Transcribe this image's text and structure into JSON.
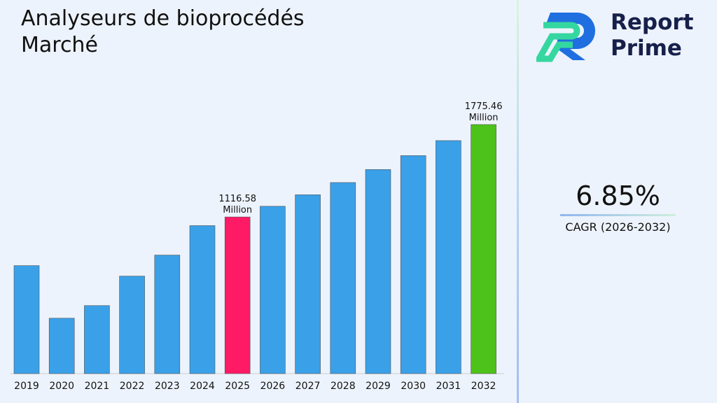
{
  "title": "Analyseurs de bioprocédés Marché",
  "brand": {
    "line1": "Report",
    "line2": "Prime"
  },
  "cagr": {
    "value": "6.85%",
    "label": "CAGR (2026-2032)"
  },
  "colors": {
    "default": "#3aa0e8",
    "highlight": "#ff1a66",
    "final": "#4cc21a"
  },
  "chart_data": {
    "type": "bar",
    "title": "Analyseurs de bioprocédés Marché",
    "categories": [
      "2019",
      "2020",
      "2021",
      "2022",
      "2023",
      "2024",
      "2025",
      "2026",
      "2027",
      "2028",
      "2029",
      "2030",
      "2031",
      "2032"
    ],
    "values": [
      770,
      395,
      485,
      695,
      845,
      1055,
      1116.58,
      1193,
      1275,
      1362,
      1455,
      1554,
      1661,
      1775.46
    ],
    "data_labels": {
      "2025": "1116.58 Million",
      "2032": "1775.46 Million"
    },
    "ylim": [
      0,
      1775.46
    ],
    "grid": false
  }
}
